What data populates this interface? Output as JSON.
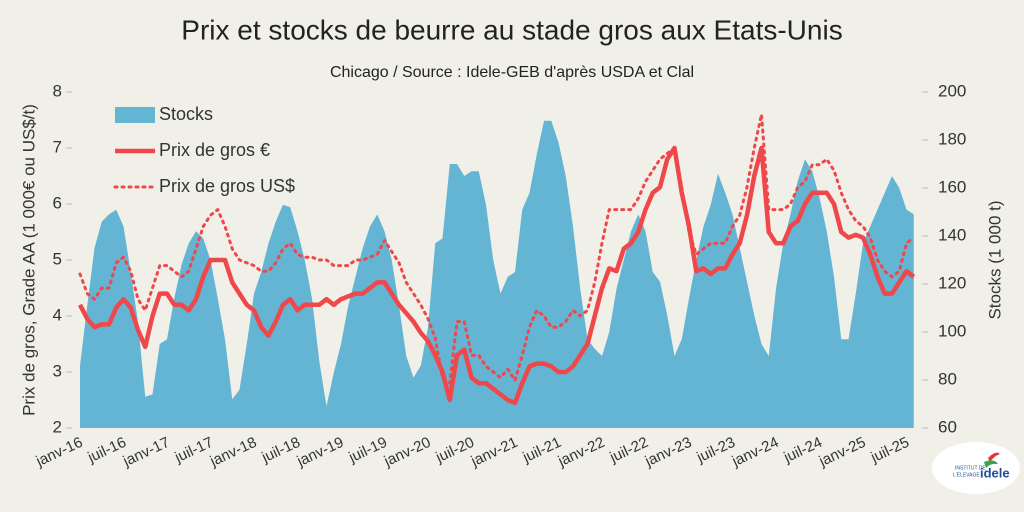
{
  "chart_data": {
    "type": "line",
    "title": "Prix et stocks de beurre au stade gros aux Etats-Unis",
    "subtitle": "Chicago / Source : Idele-GEB d'après USDA et Clal",
    "y_label": "Prix de gros, Grade AA (1 000€ ou US$/t)",
    "y2_label": "Stocks (1 000 t)",
    "legend": "upper left",
    "logo": {
      "line1": "INSTITUT DE",
      "line2": "L'ÉLEVAGE",
      "name": "idele"
    },
    "categories": [
      "janv-16",
      null,
      null,
      null,
      null,
      null,
      "juil-16",
      null,
      null,
      null,
      null,
      null,
      "janv-17",
      null,
      null,
      null,
      null,
      null,
      "juil-17",
      null,
      null,
      null,
      null,
      null,
      "janv-18",
      null,
      null,
      null,
      null,
      null,
      "juil-18",
      null,
      null,
      null,
      null,
      null,
      "janv-19",
      null,
      null,
      null,
      null,
      null,
      "juil-19",
      null,
      null,
      null,
      null,
      null,
      "janv-20",
      null,
      null,
      null,
      null,
      null,
      "juil-20",
      null,
      null,
      null,
      null,
      null,
      "janv-21",
      null,
      null,
      null,
      null,
      null,
      "juil-21",
      null,
      null,
      null,
      null,
      null,
      "janv-22",
      null,
      null,
      null,
      null,
      null,
      "juil-22",
      null,
      null,
      null,
      null,
      null,
      "janv-23",
      null,
      null,
      null,
      null,
      null,
      "juil-23",
      null,
      null,
      null,
      null,
      null,
      "janv-24",
      null,
      null,
      null,
      null,
      null,
      "juil-24",
      null,
      null,
      null,
      null,
      null,
      "janv-25",
      null,
      null,
      null,
      null,
      null,
      "juil-25",
      null
    ],
    "ylim": [
      2,
      8
    ],
    "yticks": [
      2,
      3,
      4,
      5,
      6,
      7,
      8
    ],
    "y2lim": [
      60,
      200
    ],
    "y2ticks": [
      60,
      80,
      100,
      120,
      140,
      160,
      180,
      200
    ],
    "series": [
      {
        "name": "Stocks",
        "color": "#63b5d3",
        "axis": "y2",
        "style": "area",
        "values": [
          86,
          111,
          135,
          146,
          149,
          151,
          144,
          125,
          104,
          73,
          74,
          95,
          97,
          114,
          128,
          137,
          142,
          139,
          130,
          114,
          97,
          72,
          76,
          95,
          116,
          125,
          137,
          146,
          153,
          152,
          142,
          130,
          114,
          88,
          69,
          83,
          95,
          111,
          123,
          135,
          144,
          149,
          142,
          130,
          111,
          90,
          81,
          86,
          102,
          137,
          139,
          170,
          170,
          165,
          167,
          167,
          153,
          130,
          116,
          123,
          125,
          151,
          158,
          174,
          188,
          188,
          179,
          165,
          144,
          118,
          97,
          93,
          90,
          100,
          118,
          130,
          142,
          149,
          142,
          125,
          121,
          107,
          90,
          97,
          114,
          130,
          144,
          153,
          166,
          158,
          149,
          135,
          121,
          107,
          95,
          90,
          118,
          137,
          149,
          163,
          172,
          167,
          156,
          142,
          123,
          97,
          97,
          116,
          137,
          144,
          151,
          158,
          165,
          160,
          151,
          149
        ]
      },
      {
        "name": "Prix de gros €",
        "color": "#f0474a",
        "style": "solid",
        "values": [
          4.2,
          3.95,
          3.8,
          3.85,
          3.85,
          4.15,
          4.3,
          4.15,
          3.75,
          3.45,
          4.0,
          4.4,
          4.4,
          4.2,
          4.2,
          4.1,
          4.3,
          4.7,
          5.0,
          5.0,
          5.0,
          4.6,
          4.4,
          4.2,
          4.1,
          3.8,
          3.65,
          3.9,
          4.2,
          4.3,
          4.1,
          4.2,
          4.2,
          4.2,
          4.3,
          4.2,
          4.3,
          4.35,
          4.4,
          4.4,
          4.5,
          4.6,
          4.6,
          4.4,
          4.2,
          4.05,
          3.9,
          3.7,
          3.55,
          3.3,
          3.0,
          2.5,
          3.3,
          3.4,
          2.9,
          2.8,
          2.8,
          2.7,
          2.6,
          2.5,
          2.45,
          2.8,
          3.1,
          3.15,
          3.15,
          3.1,
          3.0,
          3.0,
          3.1,
          3.3,
          3.5,
          4.0,
          4.5,
          4.85,
          4.8,
          5.2,
          5.3,
          5.5,
          5.9,
          6.2,
          6.3,
          6.8,
          7.0,
          6.2,
          5.6,
          4.8,
          4.85,
          4.75,
          4.85,
          4.85,
          5.1,
          5.3,
          5.8,
          6.5,
          7.0,
          5.5,
          5.3,
          5.3,
          5.6,
          5.7,
          6.0,
          6.2,
          6.2,
          6.2,
          6.0,
          5.5,
          5.4,
          5.45,
          5.4,
          5.1,
          4.7,
          4.4,
          4.4,
          4.6,
          4.8,
          4.7
        ]
      },
      {
        "name": "Prix de gros US$",
        "color": "#f0474a",
        "style": "dotted",
        "values": [
          4.75,
          4.4,
          4.3,
          4.5,
          4.5,
          4.95,
          5.05,
          4.8,
          4.3,
          4.1,
          4.5,
          4.9,
          4.9,
          4.8,
          4.7,
          4.8,
          5.2,
          5.6,
          5.8,
          5.9,
          5.6,
          5.2,
          5.0,
          4.95,
          4.9,
          4.8,
          4.8,
          4.95,
          5.2,
          5.3,
          5.1,
          5.05,
          5.05,
          5.0,
          5.0,
          4.9,
          4.9,
          4.9,
          5.0,
          5.0,
          5.05,
          5.1,
          5.35,
          5.15,
          4.95,
          4.6,
          4.4,
          4.2,
          3.95,
          3.6,
          2.9,
          2.8,
          3.9,
          3.9,
          3.3,
          3.3,
          3.1,
          3.0,
          2.9,
          3.05,
          2.85,
          3.3,
          3.8,
          4.1,
          4.0,
          3.8,
          3.8,
          3.9,
          4.1,
          4.0,
          4.1,
          4.6,
          5.3,
          5.9,
          5.9,
          5.9,
          5.9,
          6.1,
          6.4,
          6.6,
          6.8,
          6.9,
          7.0,
          6.3,
          5.5,
          5.1,
          5.2,
          5.3,
          5.3,
          5.3,
          5.6,
          5.8,
          6.3,
          7.0,
          7.6,
          5.9,
          5.9,
          5.9,
          6.0,
          6.3,
          6.4,
          6.7,
          6.7,
          6.8,
          6.6,
          6.2,
          5.9,
          5.7,
          5.6,
          5.4,
          5.0,
          4.8,
          4.7,
          4.8,
          5.3,
          5.4
        ]
      }
    ]
  }
}
